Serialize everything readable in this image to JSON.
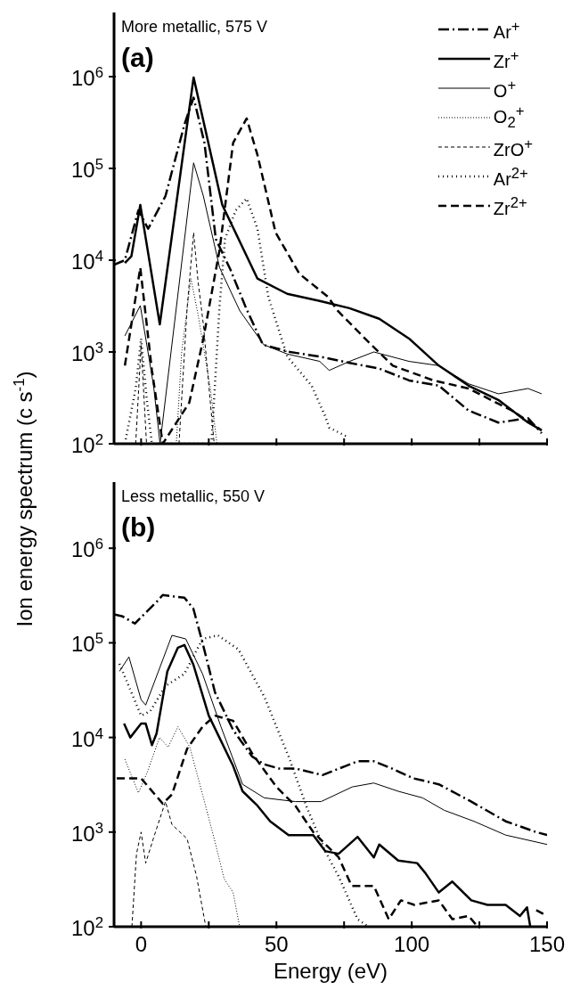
{
  "chart_data": [
    {
      "type": "line",
      "annotations": [
        "More metallic, 575 V",
        "(a)"
      ],
      "log": "y",
      "legend": "top right",
      "tick_labels": "y",
      "xlim": [
        -10,
        150
      ],
      "xticks": [
        0,
        {
          "value": 25,
          "label": null
        },
        50,
        {
          "value": 75,
          "label": null
        },
        100,
        {
          "value": 125,
          "label": null
        },
        150
      ],
      "ylim": [
        100,
        5000000
      ],
      "yticks": [
        {
          "value": 100,
          "label": "10$^{2}$"
        },
        {
          "value": 1000,
          "label": "10$^{3}$"
        },
        {
          "value": 10000,
          "label": "10$^{4}$"
        },
        {
          "value": 100000,
          "label": "10$^{5}$"
        },
        {
          "value": 1000000,
          "label": "10$^{6}$"
        }
      ],
      "series": [
        {
          "name": "Ar$^{+}$",
          "color": "#000000",
          "line_style": "dashdot",
          "x": [
            -10,
            -6,
            -1,
            2.6,
            9,
            16,
            19.4,
            23.4,
            27.6,
            33,
            38.8,
            45,
            55,
            66,
            77,
            88,
            99,
            110,
            121,
            132,
            143,
            148
          ],
          "values": [
            8900,
            10000,
            35000,
            22000,
            50000,
            300000,
            590000,
            190000,
            17000,
            7900,
            3000,
            1200,
            1000,
            890,
            760,
            660,
            490,
            430,
            230,
            170,
            190,
            130
          ]
        },
        {
          "name": "Zr$^{+}$",
          "color": "#000000",
          "line_style": "solid",
          "x": [
            -6,
            -3.6,
            -0.3,
            6.9,
            19.4,
            30,
            43,
            54,
            66,
            77,
            88,
            99,
            110,
            121,
            132,
            143,
            148
          ],
          "values": [
            9300,
            11000,
            40000,
            2000,
            980000,
            40000,
            6300,
            4300,
            3600,
            3000,
            2300,
            1400,
            710,
            430,
            300,
            170,
            140
          ]
        },
        {
          "name": "O$^{+}$",
          "color": "#000000",
          "line_style": "solid",
          "x": [
            -6,
            -0.3,
            4.6,
            7,
            13.5,
            19.4,
            23,
            29,
            36.5,
            45.3,
            54,
            66,
            69.5,
            77,
            86,
            99,
            110,
            121,
            132,
            143,
            148
          ],
          "values": [
            1500,
            3200,
            430,
            100,
            4000,
            115000,
            50000,
            8300,
            2800,
            1200,
            950,
            790,
            630,
            790,
            1000,
            790,
            710,
            450,
            350,
            400,
            350
          ]
        },
        {
          "name": "O$_{2}$$^{+}$",
          "color": "#000000",
          "line_style": "dotted",
          "x": [
            13,
            15,
            18.4,
            21,
            25.6,
            28
          ],
          "values": [
            100,
            1000,
            6300,
            2600,
            400,
            100
          ]
        },
        {
          "name": "ZrO$^{+}$",
          "color": "#000000",
          "line_style": "dashed",
          "x": [
            -2,
            0,
            2,
            14,
            17,
            19.4,
            21,
            23,
            25.5,
            27
          ],
          "values": [
            100,
            1200,
            100,
            100,
            3000,
            20000,
            6000,
            2000,
            300,
            100
          ]
        },
        {
          "name": "Ar$^{2+}$",
          "color": "#000000",
          "line_style": "dotted",
          "x": [
            -6,
            -2,
            0,
            2,
            4,
            26,
            29,
            31,
            35,
            39,
            43,
            47,
            54,
            63,
            68,
            69.5,
            76
          ],
          "values": [
            100,
            400,
            1400,
            320,
            100,
            100,
            3200,
            17000,
            35000,
            47000,
            22000,
            4000,
            890,
            430,
            200,
            150,
            120
          ]
        },
        {
          "name": "Zr$^{2+}$",
          "color": "#000000",
          "line_style": "dashed",
          "x": [
            -6,
            -0.3,
            4,
            8,
            17.8,
            23,
            29,
            34,
            39,
            43,
            49.7,
            58.5,
            69,
            72.7,
            85,
            93,
            108,
            121,
            137,
            148
          ],
          "values": [
            710,
            8300,
            630,
            100,
            280,
            1400,
            13000,
            190000,
            350000,
            140000,
            20000,
            7100,
            4000,
            2800,
            1200,
            710,
            490,
            400,
            230,
            140
          ]
        }
      ]
    },
    {
      "type": "line",
      "xlabel": "Energy (eV)",
      "ylabel": "Ion energy spectrum (c s$^{-1}$)",
      "annotations": [
        "Less metallic, 550 V",
        "(b)"
      ],
      "log": "y",
      "xlim": [
        -10,
        150
      ],
      "xticks": [
        0,
        {
          "value": 25,
          "label": null
        },
        50,
        {
          "value": 75,
          "label": null
        },
        100,
        {
          "value": 125,
          "label": null
        },
        150
      ],
      "ylim": [
        100,
        5000000
      ],
      "yticks": [
        {
          "value": 100,
          "label": "10$^{2}$"
        },
        {
          "value": 1000,
          "label": "10$^{3}$"
        },
        {
          "value": 10000,
          "label": "10$^{4}$"
        },
        {
          "value": 100000,
          "label": "10$^{5}$"
        },
        {
          "value": 1000000,
          "label": "10$^{6}$"
        }
      ],
      "series": [
        {
          "color": "#000000",
          "line_style": "dashdot",
          "x": [
            -10,
            -6.8,
            -2.3,
            5.7,
            8,
            16,
            19.3,
            22.7,
            27.3,
            34,
            41,
            45.5,
            51,
            57,
            67,
            75.6,
            80,
            86,
            92.6,
            100.6,
            110,
            122,
            134.7,
            146,
            150
          ],
          "values": [
            200000,
            190000,
            160000,
            270000,
            320000,
            300000,
            230000,
            100000,
            30000,
            12000,
            6300,
            5200,
            4700,
            4700,
            4000,
            5000,
            5600,
            5600,
            4700,
            3700,
            3200,
            2100,
            1300,
            1000,
            930
          ]
        },
        {
          "color": "#000000",
          "line_style": "solid",
          "x": [
            -6.3,
            -4,
            0,
            1.7,
            4,
            5.7,
            9.7,
            13.6,
            16,
            19.3,
            25,
            34,
            37.5,
            43,
            47.7,
            54.5,
            63.6,
            68,
            73,
            80,
            86,
            88,
            95,
            102,
            105,
            110,
            115,
            122,
            128,
            134.7,
            140,
            142.6,
            143.8
          ],
          "values": [
            14000,
            10000,
            14000,
            14000,
            8300,
            11000,
            50000,
            89000,
            95000,
            59000,
            17000,
            5000,
            2700,
            1900,
            1300,
            930,
            930,
            630,
            590,
            890,
            540,
            740,
            500,
            470,
            370,
            230,
            300,
            190,
            170,
            170,
            130,
            160,
            100
          ]
        },
        {
          "color": "#000000",
          "line_style": "solid",
          "x": [
            -8,
            -4.5,
            0,
            1.7,
            11.4,
            16.5,
            22.7,
            29.5,
            37.5,
            45.5,
            57,
            66.5,
            78,
            86,
            95,
            104,
            112,
            123,
            134.7,
            150
          ],
          "values": [
            50000,
            71000,
            25000,
            22000,
            120000,
            110000,
            47000,
            13000,
            3200,
            2300,
            2100,
            2100,
            3000,
            3300,
            2700,
            2300,
            1700,
            1300,
            930,
            740
          ]
        },
        {
          "color": "#000000",
          "line_style": "dotted",
          "x": [
            -6,
            -1,
            2.3,
            6.8,
            10,
            13.6,
            18,
            22.7,
            27.3,
            30.7,
            34,
            36.4
          ],
          "values": [
            5900,
            2600,
            4300,
            10000,
            7900,
            13000,
            7900,
            2500,
            790,
            320,
            230,
            100
          ]
        },
        {
          "color": "#000000",
          "line_style": "dashed",
          "x": [
            -3.4,
            -1.7,
            0,
            1.7,
            4.5,
            9,
            11.4,
            17,
            20.5,
            23.9
          ],
          "values": [
            100,
            590,
            1000,
            470,
            850,
            2100,
            1200,
            850,
            340,
            100
          ]
        },
        {
          "color": "#000000",
          "line_style": "dotted",
          "x": [
            -8,
            0,
            3.4,
            9,
            16,
            22.7,
            28.4,
            36,
            45.5,
            54.5,
            61,
            68,
            73,
            80,
            84
          ],
          "values": [
            60000,
            17000,
            19000,
            35000,
            47000,
            110000,
            120000,
            85000,
            27000,
            6300,
            1900,
            630,
            340,
            120,
            100
          ]
        },
        {
          "color": "#000000",
          "line_style": "dashed",
          "x": [
            -9,
            0,
            8,
            11.4,
            17,
            22.7,
            27.3,
            34,
            41,
            50,
            57,
            63.6,
            73,
            77.8,
            86,
            91.5,
            96,
            101,
            110,
            115,
            121,
            124.4,
            135,
            146,
            150
          ],
          "values": [
            3700,
            3700,
            2000,
            2500,
            7600,
            13000,
            17000,
            15000,
            6800,
            3000,
            1900,
            1000,
            540,
            270,
            270,
            120,
            190,
            170,
            190,
            120,
            130,
            100,
            null,
            150,
            130
          ]
        }
      ]
    }
  ]
}
